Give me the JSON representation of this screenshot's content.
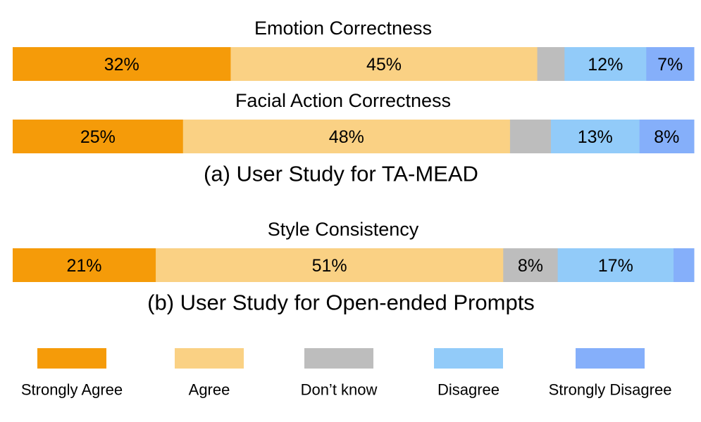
{
  "chart_data": {
    "type": "stacked-bar",
    "orientation": "horizontal",
    "categories": [
      "Strongly Agree",
      "Agree",
      "Don’t know",
      "Disagree",
      "Strongly Disagree"
    ],
    "colors": [
      "#F59B09",
      "#FAD184",
      "#BDBDBD",
      "#92CBF9",
      "#85AFFA"
    ],
    "legend_position": "bottom",
    "groups": [
      {
        "caption": "(a) User Study for TA-MEAD",
        "bars": [
          {
            "title": "Emotion Correctness",
            "values": [
              32,
              45,
              4,
              12,
              7
            ],
            "labels": [
              "32%",
              "45%",
              "",
              "12%",
              "7%"
            ]
          },
          {
            "title": "Facial Action Correctness",
            "values": [
              25,
              48,
              6,
              13,
              8
            ],
            "labels": [
              "25%",
              "48%",
              "",
              "13%",
              "8%"
            ]
          }
        ]
      },
      {
        "caption": "(b) User Study for Open-ended Prompts",
        "bars": [
          {
            "title": "Style Consistency",
            "values": [
              21,
              51,
              8,
              17,
              3
            ],
            "labels": [
              "21%",
              "51%",
              "8%",
              "17%",
              ""
            ]
          }
        ]
      }
    ]
  }
}
